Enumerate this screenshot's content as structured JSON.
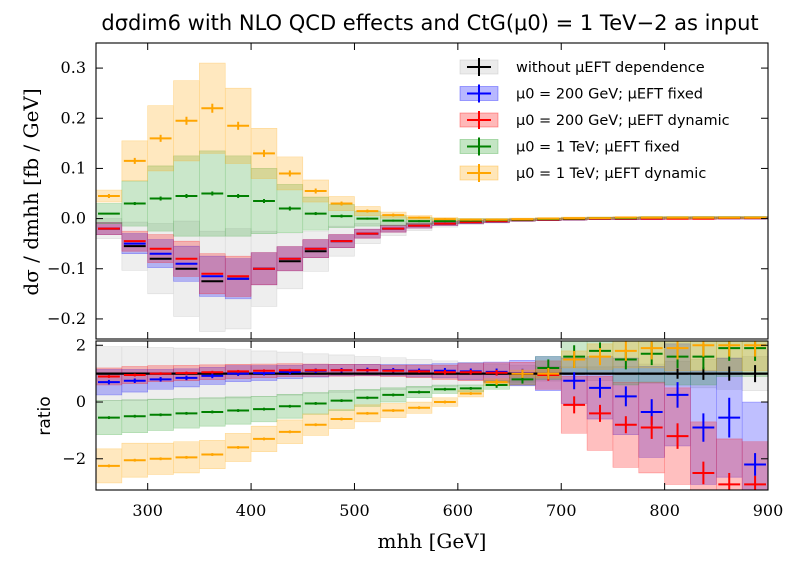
{
  "chart_data": {
    "type": "histogram-step",
    "title": "dσdim6 with NLO QCD effects and CtG(μ0) = 1 TeV−2 as input",
    "xlabel": "mhh [GeV]",
    "xlim": [
      250,
      900
    ],
    "x_ticks": [
      300,
      400,
      500,
      600,
      700,
      800,
      900
    ],
    "bins": [
      250,
      275,
      300,
      325,
      350,
      375,
      400,
      425,
      450,
      475,
      500,
      525,
      550,
      575,
      600,
      625,
      650,
      675,
      700,
      725,
      750,
      775,
      800,
      825,
      850,
      875,
      900
    ],
    "top_panel": {
      "ylabel": "dσ / dmhh [fb / GeV]",
      "ylim": [
        -0.24,
        0.35
      ],
      "y_ticks": [
        -0.2,
        -0.1,
        0.0,
        0.1,
        0.2,
        0.3
      ],
      "series": [
        {
          "name": "without μEFT dependence",
          "color": "#000000",
          "band_color": "#b0b0b0",
          "values": [
            -0.02,
            -0.055,
            -0.08,
            -0.1,
            -0.125,
            -0.12,
            -0.1,
            -0.085,
            -0.065,
            -0.045,
            -0.03,
            -0.02,
            -0.014,
            -0.01,
            -0.007,
            -0.005,
            -0.003,
            -0.002,
            -0.001,
            0.0,
            0.0,
            0.001,
            0.001,
            0.002,
            0.002,
            0.002
          ],
          "err": [
            0.02,
            0.048,
            0.07,
            0.095,
            0.1,
            0.1,
            0.075,
            0.055,
            0.04,
            0.03,
            0.02,
            0.014,
            0.01,
            0.007,
            0.005,
            0.004,
            0.003,
            0.002,
            0.002,
            0.002,
            0.002,
            0.002,
            0.002,
            0.002,
            0.002,
            0.002
          ]
        },
        {
          "name": "μ0 = 200 GeV; μEFT fixed",
          "color": "#0000ff",
          "band_color": "#0000ff",
          "values": [
            -0.02,
            -0.05,
            -0.07,
            -0.09,
            -0.115,
            -0.12,
            -0.1,
            -0.08,
            -0.06,
            -0.045,
            -0.03,
            -0.02,
            -0.014,
            -0.01,
            -0.007,
            -0.005,
            -0.003,
            -0.002,
            -0.001,
            0.0,
            0.0,
            0.0,
            0.001,
            0.001,
            0.001,
            0.001
          ],
          "err": [
            0.012,
            0.02,
            0.028,
            0.035,
            0.04,
            0.04,
            0.032,
            0.024,
            0.018,
            0.013,
            0.009,
            0.007,
            0.005,
            0.004,
            0.003,
            0.003,
            0.002,
            0.002,
            0.002,
            0.002,
            0.002,
            0.002,
            0.002,
            0.002,
            0.002,
            0.002
          ]
        },
        {
          "name": "μ0 = 200 GeV; μEFT dynamic",
          "color": "#ff0000",
          "band_color": "#ff0000",
          "values": [
            -0.02,
            -0.045,
            -0.06,
            -0.08,
            -0.11,
            -0.115,
            -0.1,
            -0.08,
            -0.06,
            -0.045,
            -0.03,
            -0.02,
            -0.014,
            -0.01,
            -0.007,
            -0.005,
            -0.003,
            -0.002,
            -0.001,
            0.0,
            0.0,
            0.0,
            0.0,
            0.0,
            0.001,
            0.001
          ],
          "err": [
            0.012,
            0.02,
            0.028,
            0.035,
            0.04,
            0.04,
            0.032,
            0.024,
            0.018,
            0.013,
            0.009,
            0.007,
            0.005,
            0.004,
            0.003,
            0.003,
            0.002,
            0.002,
            0.002,
            0.002,
            0.002,
            0.002,
            0.002,
            0.002,
            0.002,
            0.002
          ]
        },
        {
          "name": "μ0 = 1 TeV; μEFT fixed",
          "color": "#008000",
          "band_color": "#2ca02c",
          "values": [
            0.01,
            0.03,
            0.04,
            0.045,
            0.05,
            0.045,
            0.035,
            0.02,
            0.01,
            0.005,
            0.0,
            -0.004,
            -0.005,
            -0.005,
            -0.004,
            -0.003,
            -0.002,
            -0.001,
            0.0,
            0.001,
            0.001,
            0.002,
            0.002,
            0.002,
            0.002,
            0.002
          ],
          "err": [
            0.02,
            0.045,
            0.065,
            0.08,
            0.085,
            0.08,
            0.065,
            0.048,
            0.033,
            0.023,
            0.015,
            0.01,
            0.007,
            0.005,
            0.004,
            0.003,
            0.002,
            0.002,
            0.002,
            0.002,
            0.002,
            0.002,
            0.002,
            0.002,
            0.002,
            0.002
          ],
          "point_err": [
            0.0,
            0.003,
            0.004,
            0.004,
            0.004,
            0.004,
            0.004,
            0.004,
            0.003,
            0.003,
            0.002,
            0.002,
            0.002,
            0.002,
            0.002,
            0.002,
            0.001,
            0.001,
            0.001,
            0.001,
            0.001,
            0.001,
            0.001,
            0.001,
            0.001,
            0.001
          ]
        },
        {
          "name": "μ0 = 1 TeV; μEFT dynamic",
          "color": "#ffa500",
          "band_color": "#ffa500",
          "values": [
            0.045,
            0.115,
            0.16,
            0.195,
            0.22,
            0.185,
            0.13,
            0.09,
            0.055,
            0.03,
            0.015,
            0.007,
            0.002,
            -0.001,
            -0.002,
            -0.002,
            -0.001,
            0.0,
            0.001,
            0.001,
            0.002,
            0.002,
            0.002,
            0.002,
            0.002,
            0.002
          ],
          "err": [
            0.012,
            0.04,
            0.065,
            0.08,
            0.09,
            0.075,
            0.05,
            0.033,
            0.022,
            0.014,
            0.009,
            0.006,
            0.004,
            0.003,
            0.002,
            0.002,
            0.002,
            0.002,
            0.002,
            0.002,
            0.002,
            0.002,
            0.002,
            0.002,
            0.002,
            0.002
          ],
          "point_err": [
            0.004,
            0.006,
            0.007,
            0.008,
            0.009,
            0.008,
            0.007,
            0.006,
            0.005,
            0.004,
            0.003,
            0.003,
            0.002,
            0.002,
            0.002,
            0.002,
            0.001,
            0.001,
            0.001,
            0.001,
            0.001,
            0.001,
            0.001,
            0.001,
            0.001,
            0.001
          ]
        }
      ]
    },
    "ratio_panel": {
      "ylabel": "ratio",
      "ylim": [
        -3.1,
        2.15
      ],
      "y_ticks": [
        -2,
        0,
        2
      ],
      "reference_line": 1,
      "series": [
        {
          "name": "without μEFT dependence",
          "color": "#000000",
          "band_color": "#b0b0b0",
          "values": [
            1,
            1,
            1,
            1,
            1,
            1,
            1,
            1,
            1,
            1,
            1,
            1,
            1,
            1,
            1,
            1,
            1,
            1,
            1,
            1,
            1,
            1,
            1,
            1,
            1,
            1
          ],
          "err": [
            0.95,
            0.95,
            0.92,
            0.9,
            0.88,
            0.86,
            0.8,
            0.76,
            0.7,
            0.66,
            0.6,
            0.56,
            0.5,
            0.45,
            0.4,
            0.34,
            0.3,
            0.26,
            0.24,
            0.24,
            0.26,
            0.34,
            0.44,
            0.5,
            0.55,
            0.6
          ],
          "point_err": [
            0,
            0,
            0,
            0,
            0,
            0,
            0,
            0,
            0,
            0,
            0,
            0,
            0,
            0,
            0,
            0,
            0,
            0,
            0,
            0,
            0,
            0,
            0.18,
            0.22,
            0.25,
            0.3
          ]
        },
        {
          "name": "μ0 = 200 GeV; μEFT fixed",
          "color": "#0000ff",
          "band_color": "#0000ff",
          "values": [
            0.7,
            0.75,
            0.8,
            0.85,
            0.92,
            1.0,
            1.02,
            1.06,
            1.1,
            1.12,
            1.13,
            1.12,
            1.1,
            1.1,
            1.08,
            1.06,
            1.02,
            1.0,
            0.75,
            0.5,
            0.2,
            -0.35,
            0.25,
            -0.9,
            -0.55,
            -2.2
          ],
          "err": [
            0.45,
            0.4,
            0.35,
            0.32,
            0.3,
            0.28,
            0.26,
            0.24,
            0.22,
            0.2,
            0.2,
            0.2,
            0.22,
            0.25,
            0.3,
            0.35,
            0.45,
            0.6,
            0.8,
            1.1,
            1.35,
            1.6,
            1.8,
            2.0,
            2.1,
            2.2
          ],
          "point_err": [
            0.08,
            0.08,
            0.08,
            0.08,
            0.08,
            0.08,
            0.08,
            0.08,
            0.08,
            0.08,
            0.08,
            0.08,
            0.08,
            0.1,
            0.1,
            0.12,
            0.15,
            0.2,
            0.3,
            0.35,
            0.35,
            0.45,
            0.45,
            0.5,
            0.7,
            0.4
          ]
        },
        {
          "name": "μ0 = 200 GeV; μEFT dynamic",
          "color": "#ff0000",
          "band_color": "#ff0000",
          "values": [
            0.9,
            0.95,
            1.0,
            1.02,
            1.05,
            1.08,
            1.1,
            1.12,
            1.12,
            1.12,
            1.12,
            1.1,
            1.08,
            1.05,
            1.05,
            1.03,
            1.0,
            0.95,
            -0.1,
            -0.4,
            -0.8,
            -0.9,
            -1.2,
            -2.5,
            -2.9,
            -2.9
          ],
          "err": [
            0.3,
            0.3,
            0.28,
            0.27,
            0.26,
            0.25,
            0.24,
            0.23,
            0.22,
            0.21,
            0.2,
            0.2,
            0.22,
            0.25,
            0.3,
            0.35,
            0.4,
            0.5,
            1.0,
            1.3,
            1.5,
            1.6,
            1.7,
            1.8,
            1.6,
            1.5
          ],
          "point_err": [
            0.05,
            0.05,
            0.05,
            0.05,
            0.05,
            0.05,
            0.05,
            0.05,
            0.05,
            0.05,
            0.05,
            0.05,
            0.05,
            0.08,
            0.08,
            0.1,
            0.15,
            0.2,
            0.3,
            0.3,
            0.3,
            0.4,
            0.45,
            0.4,
            0.4,
            0.3
          ]
        },
        {
          "name": "μ0 = 1 TeV; μEFT fixed",
          "color": "#008000",
          "band_color": "#2ca02c",
          "values": [
            -0.55,
            -0.5,
            -0.45,
            -0.4,
            -0.35,
            -0.3,
            -0.25,
            -0.15,
            -0.05,
            0.05,
            0.15,
            0.25,
            0.35,
            0.45,
            0.48,
            0.6,
            0.8,
            1.2,
            1.6,
            1.8,
            1.5,
            1.7,
            1.6,
            1.6,
            1.9,
            1.9
          ],
          "err": [
            0.6,
            0.58,
            0.55,
            0.52,
            0.5,
            0.48,
            0.45,
            0.42,
            0.38,
            0.35,
            0.3,
            0.25,
            0.2,
            0.15,
            0.12,
            0.15,
            0.2,
            0.4,
            0.6,
            0.8,
            0.9,
            1.0,
            1.0,
            1.0,
            1.0,
            1.0
          ],
          "point_err": [
            0.05,
            0.05,
            0.05,
            0.05,
            0.05,
            0.05,
            0.05,
            0.05,
            0.05,
            0.05,
            0.05,
            0.05,
            0.05,
            0.05,
            0.05,
            0.1,
            0.15,
            0.3,
            0.4,
            0.3,
            0.35,
            0.4,
            0.4,
            0.45,
            0.45,
            0.45
          ]
        },
        {
          "name": "μ0 = 1 TeV; μEFT dynamic",
          "color": "#ffa500",
          "band_color": "#ffa500",
          "values": [
            -2.25,
            -2.05,
            -2.0,
            -1.95,
            -1.85,
            -1.6,
            -1.3,
            -1.05,
            -0.8,
            -0.6,
            -0.4,
            -0.3,
            -0.2,
            0.0,
            0.3,
            0.7,
            1.0,
            1.0,
            1.5,
            1.6,
            1.8,
            1.9,
            1.9,
            2.0,
            2.0,
            2.0
          ],
          "err": [
            0.6,
            0.6,
            0.55,
            0.55,
            0.5,
            0.5,
            0.45,
            0.42,
            0.38,
            0.33,
            0.3,
            0.25,
            0.2,
            0.15,
            0.12,
            0.12,
            0.12,
            0.15,
            0.3,
            0.45,
            0.6,
            0.7,
            0.8,
            0.9,
            0.9,
            0.9
          ],
          "point_err": [
            0.05,
            0.05,
            0.05,
            0.05,
            0.05,
            0.05,
            0.05,
            0.05,
            0.05,
            0.05,
            0.05,
            0.05,
            0.05,
            0.05,
            0.05,
            0.1,
            0.15,
            0.2,
            0.3,
            0.3,
            0.35,
            0.4,
            0.4,
            0.4,
            0.4,
            0.4
          ]
        }
      ]
    },
    "legend": {
      "placement": "top-right",
      "entries": [
        {
          "label": "without μEFT dependence",
          "color": "#000000",
          "band_color": "#b0b0b0"
        },
        {
          "label": "μ0 = 200 GeV; μEFT fixed",
          "color": "#0000ff",
          "band_color": "#0000ff"
        },
        {
          "label": "μ0 = 200 GeV; μEFT dynamic",
          "color": "#ff0000",
          "band_color": "#ff0000"
        },
        {
          "label": "μ0 = 1 TeV; μEFT fixed",
          "color": "#008000",
          "band_color": "#2ca02c"
        },
        {
          "label": "μ0 = 1 TeV; μEFT dynamic",
          "color": "#ffa500",
          "band_color": "#ffa500"
        }
      ]
    }
  }
}
